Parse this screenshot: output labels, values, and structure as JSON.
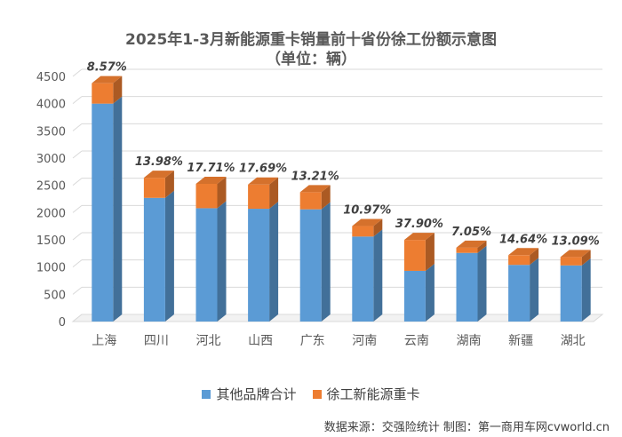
{
  "chart_data": {
    "type": "bar",
    "stacked": true,
    "title": "2025年1-3月新能源重卡销量前十省份徐工份额示意图",
    "subtitle": "（单位：辆）",
    "categories": [
      "上海",
      "四川",
      "河北",
      "山西",
      "广东",
      "河南",
      "云南",
      "湖南",
      "新疆",
      "湖北"
    ],
    "series": [
      {
        "name": "其他品牌合计",
        "color": "#5b9bd5",
        "values": [
          4000,
          2270,
          2080,
          2070,
          2060,
          1560,
          930,
          1260,
          1040,
          1030
        ]
      },
      {
        "name": "徐工新能源重卡",
        "color": "#ed7d31",
        "values": [
          375,
          369,
          448,
          445,
          314,
          192,
          568,
          96,
          178,
          155
        ]
      }
    ],
    "data_labels": [
      "8.57%",
      "13.98%",
      "17.71%",
      "17.69%",
      "13.21%",
      "10.97%",
      "37.90%",
      "7.05%",
      "14.64%",
      "13.09%"
    ],
    "yticks": [
      0,
      500,
      1000,
      1500,
      2000,
      2500,
      3000,
      3500,
      4000,
      4500
    ],
    "ylim": [
      0,
      4500
    ],
    "grid": true,
    "legend_position": "bottom"
  },
  "source_text": "数据来源：交强险统计  制图：第一商用车网cvworld.cn"
}
